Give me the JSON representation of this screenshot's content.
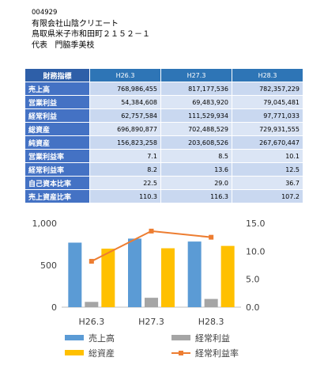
{
  "company": {
    "code": "004929",
    "name": "有限会社山陰クリエート",
    "address": "鳥取県米子市和田町２１５２－１",
    "rep_label": "代表",
    "rep_name": "門脇季美枝"
  },
  "table": {
    "corner": "財務指標",
    "columns": [
      "H26.3",
      "H27.3",
      "H28.3"
    ],
    "rows": [
      {
        "label": "売上高",
        "values": [
          "768,986,455",
          "817,177,536",
          "782,357,229"
        ]
      },
      {
        "label": "営業利益",
        "values": [
          "54,384,608",
          "69,483,920",
          "79,045,481"
        ]
      },
      {
        "label": "経常利益",
        "values": [
          "62,757,584",
          "111,529,934",
          "97,771,033"
        ]
      },
      {
        "label": "総資産",
        "values": [
          "696,890,877",
          "702,488,529",
          "729,931,555"
        ]
      },
      {
        "label": "純資産",
        "values": [
          "156,823,258",
          "203,608,526",
          "267,670,447"
        ]
      },
      {
        "label": "営業利益率",
        "values": [
          "7.1",
          "8.5",
          "10.1"
        ]
      },
      {
        "label": "経常利益率",
        "values": [
          "8.2",
          "13.6",
          "12.5"
        ]
      },
      {
        "label": "自己資本比率",
        "values": [
          "22.5",
          "29.0",
          "36.7"
        ]
      },
      {
        "label": "売上資産比率",
        "values": [
          "110.3",
          "116.3",
          "107.2"
        ]
      }
    ]
  },
  "chart_data": {
    "type": "bar",
    "categories": [
      "H26.3",
      "H27.3",
      "H28.3"
    ],
    "series": [
      {
        "name": "売上高",
        "axis": "left",
        "kind": "bar",
        "color": "#5b9bd5",
        "values": [
          769,
          817,
          782
        ]
      },
      {
        "name": "経常利益",
        "axis": "left",
        "kind": "bar",
        "color": "#a5a5a5",
        "values": [
          63,
          112,
          98
        ]
      },
      {
        "name": "総資産",
        "axis": "left",
        "kind": "bar",
        "color": "#ffc000",
        "values": [
          697,
          702,
          730
        ]
      },
      {
        "name": "経常利益率",
        "axis": "right",
        "kind": "line",
        "color": "#ed7d31",
        "values": [
          8.2,
          13.6,
          12.5
        ]
      }
    ],
    "left_axis": {
      "min": 0,
      "max": 1000,
      "ticks": [
        0,
        500,
        1000
      ],
      "tick_labels": [
        "0",
        "500",
        "1,000"
      ]
    },
    "right_axis": {
      "min": 0,
      "max": 15,
      "ticks": [
        0,
        5,
        10,
        15
      ],
      "tick_labels": [
        "0.0",
        "5.0",
        "10.0",
        "15.0"
      ]
    },
    "legend_position": "bottom",
    "grid": false
  }
}
